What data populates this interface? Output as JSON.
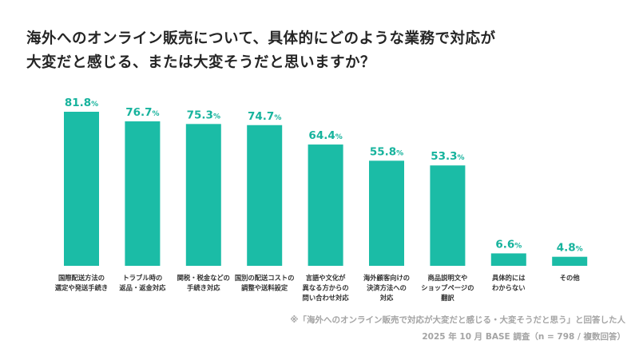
{
  "chart_data": {
    "type": "bar",
    "title_lines": [
      "海外へのオンライン販売について、具体的にどのような業務で対応が",
      "大変だと感じる、または大変そうだと思いますか？"
    ],
    "categories": [
      [
        "国際配送方法の",
        "選定や発送手続き"
      ],
      [
        "トラブル時の",
        "返品・返金対応"
      ],
      [
        "関税・税金などの",
        "手続き対応"
      ],
      [
        "国別の配送コストの",
        "調整や送料設定"
      ],
      [
        "言語や文化が",
        "異なる方からの",
        "問い合わせ対応"
      ],
      [
        "海外顧客向けの",
        "決済方法への",
        "対応"
      ],
      [
        "商品説明文や",
        "ショップページの",
        "翻訳"
      ],
      [
        "具体的には",
        "わからない"
      ],
      [
        "その他"
      ]
    ],
    "values": [
      81.8,
      76.7,
      75.3,
      74.7,
      64.4,
      55.8,
      53.3,
      6.6,
      4.8
    ],
    "unit": "%",
    "ylim": [
      0,
      100
    ],
    "grid": false,
    "bar_color": "#1bbca6",
    "label_color": "#17b39d"
  },
  "footnote": {
    "line1": "※「海外へのオンライン販売で対応が大変だと感じる・大変そうだと思う」と回答した人",
    "line2": "2025 年 10 月 BASE 調査（n = 798 / 複数回答）"
  }
}
